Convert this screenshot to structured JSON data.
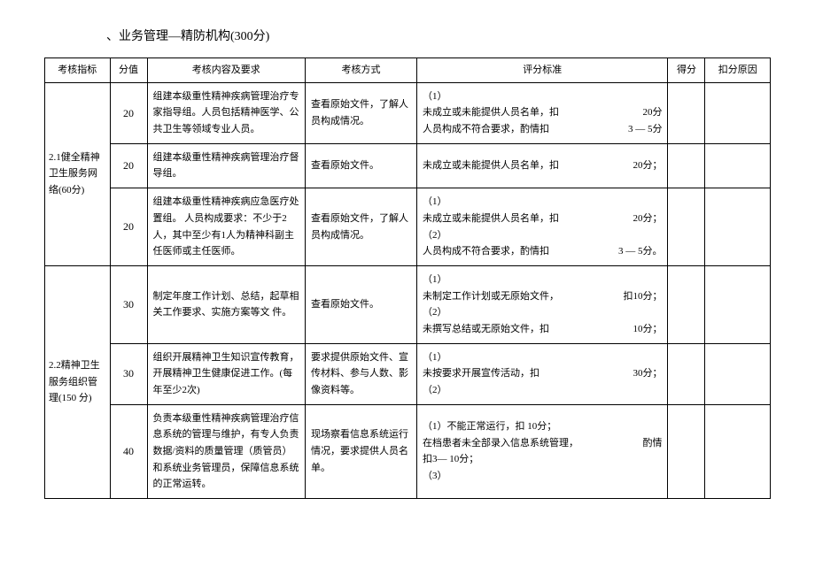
{
  "title": "、业务管理—精防机构(300分)",
  "headers": {
    "indicator": "考核指标",
    "score": "分值",
    "content": "考核内容及要求",
    "method": "考核方式",
    "criteria": "评分标准",
    "points": "得分",
    "reason": "扣分原因"
  },
  "section1": {
    "indicator": "2.1健全精神卫生服务网络(60分)",
    "rows": [
      {
        "score": "20",
        "content": "组建本级重性精神疾病管理治疗专家指导组。人员包括精神医学、公共卫生等领域专业人员。",
        "method": "查看原始文件，了解人员构成情况。",
        "criteria_lines": [
          {
            "left": "（1）",
            "right": ""
          },
          {
            "left": "未成立或未能提供人员名单，扣",
            "right": "20分"
          },
          {
            "left": "人员构成不符合要求，酌情扣",
            "right": "3 — 5分"
          }
        ]
      },
      {
        "score": "20",
        "content": "组建本级重性精神疾病管理治疗督导组。",
        "method": "查看原始文件。",
        "criteria_lines": [
          {
            "left": "未成立或未能提供人员名单，扣",
            "right": "20分；"
          }
        ]
      },
      {
        "score": "20",
        "content": "组建本级重性精神疾病应急医疗处置组。\n人员构成要求：不少于2人，其中至少有1人为精神科副主任医师或主任医师。",
        "method": "查看原始文件，了解人员构成情况。",
        "criteria_lines": [
          {
            "left": "（1）",
            "right": ""
          },
          {
            "left": "未成立或未能提供人员名单，扣",
            "right": "20分；"
          },
          {
            "left": "（2）",
            "right": ""
          },
          {
            "left": "人员构成不符合要求，酌情扣",
            "right": "3 — 5分。"
          }
        ]
      }
    ]
  },
  "section2": {
    "indicator": "2.2精神卫生服务组织管理(150 分)",
    "rows": [
      {
        "score": "30",
        "content": "制定年度工作计划、总结，起草相关工作要求、实施方案等文 件。",
        "method": "查看原始文件。",
        "criteria_lines": [
          {
            "left": "（1）",
            "right": ""
          },
          {
            "left": "未制定工作计划或无原始文件，",
            "right": "扣10分；"
          },
          {
            "left": "（2）",
            "right": ""
          },
          {
            "left": "未撰写总结或无原始文件，扣",
            "right": "10分；"
          }
        ]
      },
      {
        "score": "30",
        "content": "组织开展精神卫生知识宣传教育，开展精神卫生健康促进工作。(每年至少2次)",
        "method": "要求提供原始文件、宣传材料、参与人数、影像资料等。",
        "criteria_lines": [
          {
            "left": "（1）",
            "right": ""
          },
          {
            "left": "未按要求开展宣传活动，扣",
            "right": "30分；"
          },
          {
            "left": "（2）",
            "right": ""
          }
        ]
      },
      {
        "score": "40",
        "content": "负责本级重性精神疾病管理治疗信息系统的管理与维护，有专人负责数据/资料的质量管理（质管员）和系统业务管理员，保障信息系统的正常运转。",
        "method": "现场察看信息系统运行情况，要求提供人员名单。",
        "criteria_lines": [
          {
            "left": "（1）不能正常运行，扣 10分；",
            "right": ""
          },
          {
            "left": "",
            "right": ""
          },
          {
            "left": "在档患者未全部录入信息系统管理，",
            "right": "酌情"
          },
          {
            "left": "扣3— 10分；",
            "right": ""
          },
          {
            "left": "（3）",
            "right": ""
          }
        ]
      }
    ]
  }
}
